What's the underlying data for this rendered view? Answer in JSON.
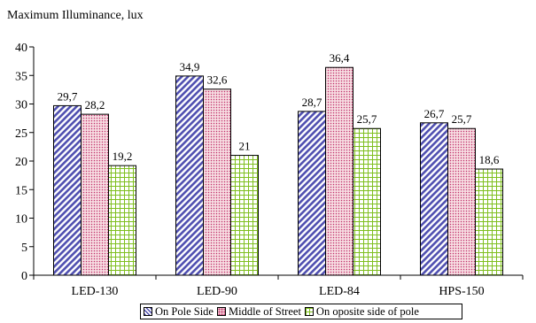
{
  "chart_data": {
    "type": "bar",
    "title": "",
    "ylabel": "Maximum Illuminance, lux",
    "xlabel": "",
    "categories": [
      "LED-130",
      "LED-90",
      "LED-84",
      "HPS-150"
    ],
    "ylim": [
      0,
      40
    ],
    "yticks": [
      "0",
      "5",
      "10",
      "15",
      "20",
      "25",
      "30",
      "35",
      "40"
    ],
    "series": [
      {
        "name": "On Pole Side",
        "values": [
          29.7,
          34.9,
          28.7,
          26.7
        ],
        "labels": [
          "29,7",
          "34,9",
          "28,7",
          "26,7"
        ],
        "color": "#4f4fb0",
        "pattern": "diagonal-stripes"
      },
      {
        "name": "Middle of Street",
        "values": [
          28.2,
          32.6,
          36.4,
          25.7
        ],
        "labels": [
          "28,2",
          "32,6",
          "36,4",
          "25,7"
        ],
        "color": "#c0306a",
        "pattern": "dots"
      },
      {
        "name": "On oposite side of pole",
        "values": [
          19.2,
          21,
          25.7,
          18.6
        ],
        "labels": [
          "19,2",
          "21",
          "25,7",
          "18,6"
        ],
        "color": "#7fbf1f",
        "pattern": "grid"
      }
    ],
    "grid": false,
    "legend": "bottom"
  }
}
